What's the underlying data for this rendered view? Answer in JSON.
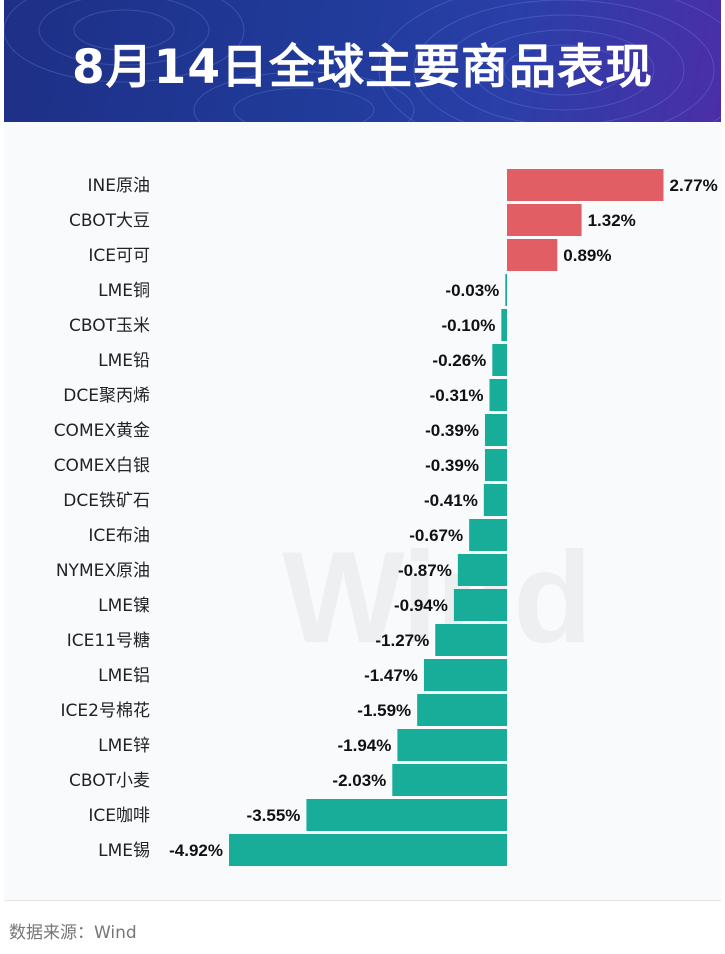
{
  "header": {
    "title": "8月14日全球主要商品表现"
  },
  "watermark": "Wind",
  "footer": {
    "source": "数据来源：Wind"
  },
  "colors": {
    "positive": "#e15f64",
    "negative": "#17ad98",
    "header_start": "#1e2f86",
    "header_end": "#4b2ea8"
  },
  "chart_data": {
    "type": "bar",
    "orientation": "horizontal",
    "title": "8月14日全球主要商品表现",
    "unit": "%",
    "categories": [
      "INE原油",
      "CBOT大豆",
      "ICE可可",
      "LME铜",
      "CBOT玉米",
      "LME铅",
      "DCE聚丙烯",
      "COMEX黄金",
      "COMEX白银",
      "DCE铁矿石",
      "ICE布油",
      "NYMEX原油",
      "LME镍",
      "ICE11号糖",
      "LME铝",
      "ICE2号棉花",
      "LME锌",
      "CBOT小麦",
      "ICE咖啡",
      "LME锡"
    ],
    "values": [
      2.77,
      1.32,
      0.89,
      -0.03,
      -0.1,
      -0.26,
      -0.31,
      -0.39,
      -0.39,
      -0.41,
      -0.67,
      -0.87,
      -0.94,
      -1.27,
      -1.47,
      -1.59,
      -1.94,
      -2.03,
      -3.55,
      -4.92
    ],
    "labels": [
      "2.77%",
      "1.32%",
      "0.89%",
      "-0.03%",
      "-0.10%",
      "-0.26%",
      "-0.31%",
      "-0.39%",
      "-0.39%",
      "-0.41%",
      "-0.67%",
      "-0.87%",
      "-0.94%",
      "-1.27%",
      "-1.47%",
      "-1.59%",
      "-1.94%",
      "-2.03%",
      "-3.55%",
      "-4.92%"
    ],
    "xlim": [
      -4.92,
      2.77
    ],
    "grid": false,
    "legend": "none"
  }
}
